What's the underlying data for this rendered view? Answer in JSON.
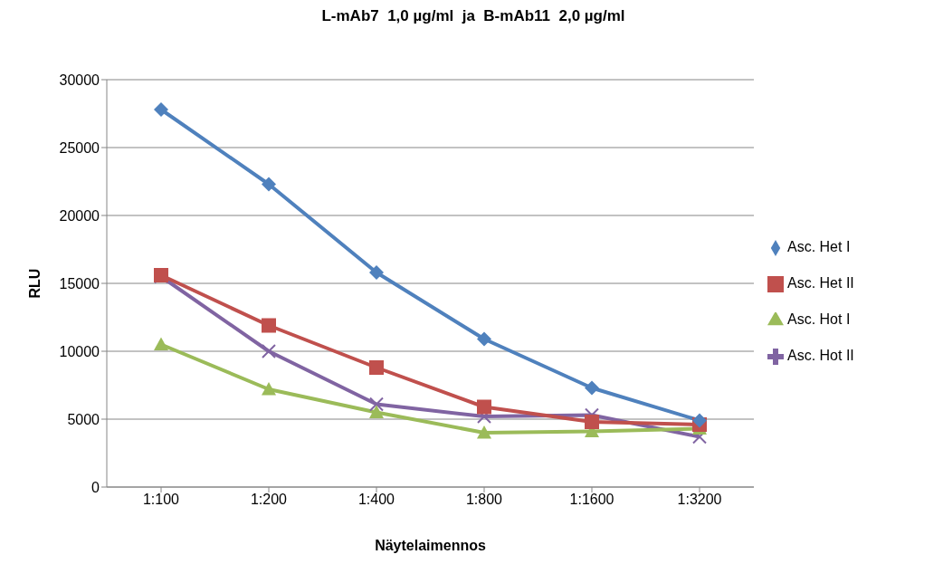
{
  "chart_data": {
    "type": "line",
    "title": "L-mAb7  1,0 µg/ml  ja  B-mAb11  2,0 µg/ml",
    "xlabel": "Näytelaimennos",
    "ylabel": "RLU",
    "categories": [
      "1:100",
      "1:200",
      "1:400",
      "1:800",
      "1:1600",
      "1:3200"
    ],
    "series": [
      {
        "name": "Asc. Het I",
        "color": "#4f81bd",
        "marker": "diamond",
        "values": [
          27800,
          22300,
          15800,
          10900,
          7300,
          4900
        ]
      },
      {
        "name": "Asc. Het II",
        "color": "#c0504d",
        "marker": "square",
        "values": [
          15600,
          11900,
          8800,
          5900,
          4800,
          4600
        ]
      },
      {
        "name": "Asc. Hot I",
        "color": "#9bbb59",
        "marker": "triangle",
        "values": [
          10500,
          7200,
          5500,
          4000,
          4100,
          4300
        ]
      },
      {
        "name": "Asc. Hot II",
        "color": "#8064a2",
        "marker": "cross",
        "values": [
          15500,
          10000,
          6100,
          5200,
          5300,
          3700
        ]
      }
    ],
    "ylim": [
      0,
      30000
    ],
    "yticks": [
      0,
      5000,
      10000,
      15000,
      20000,
      25000,
      30000
    ],
    "grid": "y",
    "legend": "right"
  }
}
